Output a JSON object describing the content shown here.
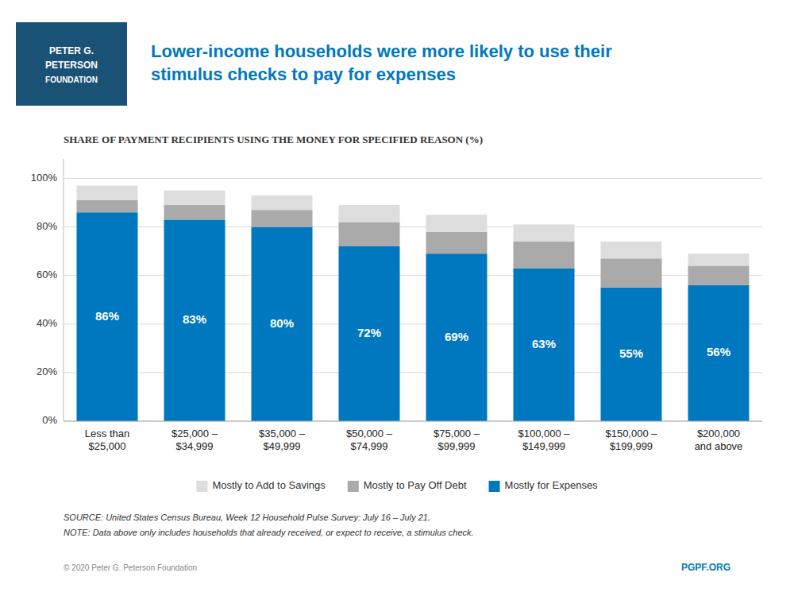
{
  "chart_data": {
    "type": "bar",
    "stacked": true,
    "title": "Lower-income households were more likely to use their\nstimulus checks to pay for expenses",
    "subtitle": "SHARE OF PAYMENT RECIPIENTS USING THE MONEY FOR SPECIFIED REASON (%)",
    "categories": [
      "Less than\n$25,000",
      "$25,000 –\n$34,999",
      "$35,000 –\n$49,999",
      "$50,000 –\n$74,999",
      "$75,000 –\n$99,999",
      "$100,000 –\n$149,999",
      "$150,000 –\n$199,999",
      "$200,000\nand above"
    ],
    "series": [
      {
        "name": "Mostly for Expenses",
        "color": "#0078BF",
        "values": [
          86,
          83,
          80,
          72,
          69,
          63,
          55,
          56
        ],
        "data_labels": true,
        "value_labels": [
          "86%",
          "83%",
          "80%",
          "72%",
          "69%",
          "63%",
          "55%",
          "56%"
        ]
      },
      {
        "name": "Mostly to Pay Off Debt",
        "color": "#AAAAAA",
        "values": [
          5,
          6,
          7,
          10,
          9,
          11,
          12,
          8
        ]
      },
      {
        "name": "Mostly to Add to Savings",
        "color": "#DDDDDD",
        "values": [
          6,
          6,
          6,
          7,
          7,
          7,
          7,
          5
        ]
      }
    ],
    "ylim": [
      0,
      108
    ],
    "yticks": [
      {
        "value": 0,
        "label": "0%"
      },
      {
        "value": 20,
        "label": "20%"
      },
      {
        "value": 40,
        "label": "40%"
      },
      {
        "value": 60,
        "label": "60%"
      },
      {
        "value": 80,
        "label": "80%"
      },
      {
        "value": 100,
        "label": "100%"
      }
    ],
    "grid": true,
    "legend": "bottom",
    "annotations": [
      "SOURCE: United States Census Bureau, Week 12 Household Pulse Survey: July 16 – July 21.",
      "NOTE: Data above only includes households that already received, or expect to receive, a stimulus check.",
      "© 2020 Peter G. Peterson Foundation",
      "PGPF.ORG",
      "PETER G.",
      "PETERSON",
      "FOUNDATION"
    ]
  }
}
